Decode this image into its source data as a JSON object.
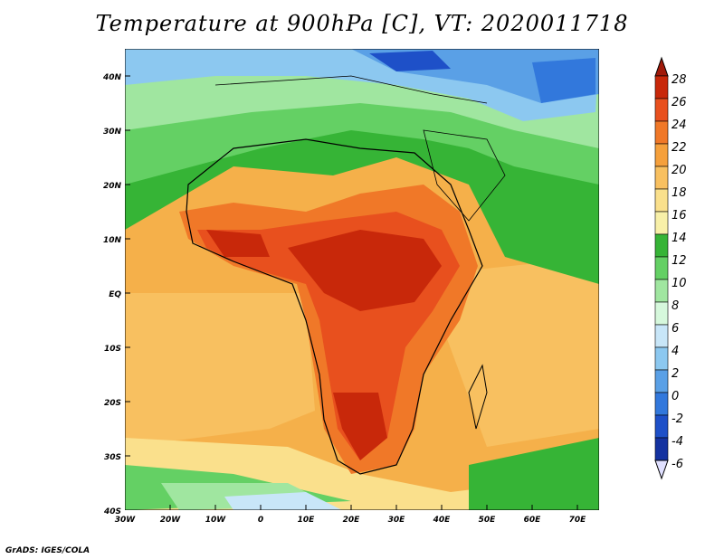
{
  "title": "Temperature at 900hPa [C], VT: 2020011718",
  "credit": "GrADS: IGES/COLA",
  "map": {
    "lat_labels": [
      "40N",
      "30N",
      "20N",
      "10N",
      "EQ",
      "10S",
      "20S",
      "30S",
      "40S"
    ],
    "lon_labels": [
      "30W",
      "20W",
      "10W",
      "0",
      "10E",
      "20E",
      "30E",
      "40E",
      "50E",
      "60E",
      "70E"
    ],
    "lon_range": [
      -30,
      75
    ],
    "lat_range": [
      -40,
      45
    ]
  },
  "colorbar": {
    "labels": [
      "28",
      "26",
      "24",
      "22",
      "20",
      "18",
      "16",
      "14",
      "12",
      "10",
      "8",
      "6",
      "4",
      "2",
      "0",
      "-2",
      "-4",
      "-6"
    ],
    "colors": [
      "#a01a0a",
      "#c8280a",
      "#e8501e",
      "#f07828",
      "#f5a03c",
      "#f8c060",
      "#fae08c",
      "#f8f0a8",
      "#36b436",
      "#64d064",
      "#a0e6a0",
      "#d6f8dc",
      "#c8e6f8",
      "#8cc8f0",
      "#5aa0e6",
      "#3278dc",
      "#1e50c8",
      "#1432a0",
      "#0a1478"
    ]
  }
}
